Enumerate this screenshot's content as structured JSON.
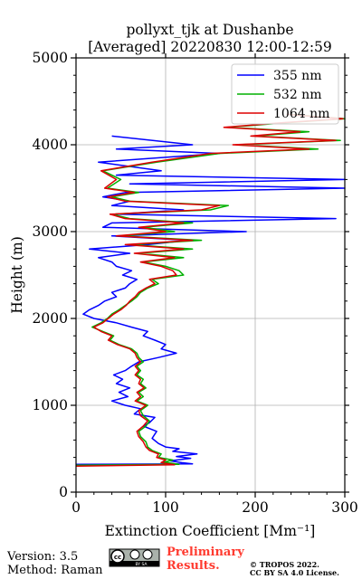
{
  "chart_data": {
    "type": "line",
    "title": "pollyxt_tjk at Dushanbe",
    "subtitle": "[Averaged] 20220830 12:00-12:59",
    "xlabel": "Extinction Coefficient [Mm⁻¹]",
    "ylabel": "Height (m)",
    "xlim": [
      0,
      300
    ],
    "ylim": [
      0,
      5000
    ],
    "x_ticks": [
      0,
      100,
      200,
      300
    ],
    "y_ticks": [
      0,
      1000,
      2000,
      3000,
      4000,
      5000
    ],
    "grid": true,
    "legend_position": "top-right",
    "series": [
      {
        "name": "355 nm",
        "color": "#0000ff",
        "points": [
          [
            0,
            320
          ],
          [
            130,
            325
          ],
          [
            118,
            340
          ],
          [
            105,
            360
          ],
          [
            128,
            390
          ],
          [
            112,
            410
          ],
          [
            135,
            440
          ],
          [
            108,
            470
          ],
          [
            115,
            500
          ],
          [
            100,
            520
          ],
          [
            92,
            560
          ],
          [
            85,
            620
          ],
          [
            90,
            700
          ],
          [
            75,
            760
          ],
          [
            82,
            800
          ],
          [
            88,
            860
          ],
          [
            65,
            900
          ],
          [
            72,
            960
          ],
          [
            55,
            1000
          ],
          [
            40,
            1050
          ],
          [
            58,
            1100
          ],
          [
            48,
            1150
          ],
          [
            60,
            1200
          ],
          [
            45,
            1250
          ],
          [
            52,
            1300
          ],
          [
            42,
            1350
          ],
          [
            55,
            1400
          ],
          [
            62,
            1450
          ],
          [
            70,
            1500
          ],
          [
            92,
            1550
          ],
          [
            112,
            1600
          ],
          [
            95,
            1650
          ],
          [
            100,
            1700
          ],
          [
            88,
            1750
          ],
          [
            75,
            1800
          ],
          [
            80,
            1850
          ],
          [
            62,
            1900
          ],
          [
            45,
            1950
          ],
          [
            20,
            2000
          ],
          [
            8,
            2050
          ],
          [
            15,
            2100
          ],
          [
            25,
            2150
          ],
          [
            32,
            2200
          ],
          [
            45,
            2250
          ],
          [
            40,
            2300
          ],
          [
            55,
            2350
          ],
          [
            60,
            2400
          ],
          [
            68,
            2450
          ],
          [
            52,
            2500
          ],
          [
            62,
            2550
          ],
          [
            45,
            2600
          ],
          [
            40,
            2650
          ],
          [
            25,
            2700
          ],
          [
            60,
            2750
          ],
          [
            15,
            2800
          ],
          [
            80,
            2850
          ],
          [
            125,
            2900
          ],
          [
            40,
            2950
          ],
          [
            190,
            3000
          ],
          [
            30,
            3050
          ],
          [
            40,
            3100
          ],
          [
            290,
            3150
          ],
          [
            45,
            3200
          ],
          [
            120,
            3250
          ],
          [
            40,
            3300
          ],
          [
            60,
            3350
          ],
          [
            30,
            3400
          ],
          [
            55,
            3450
          ],
          [
            310,
            3500
          ],
          [
            60,
            3550
          ],
          [
            300,
            3600
          ],
          [
            45,
            3650
          ],
          [
            95,
            3700
          ],
          [
            25,
            3800
          ],
          [
            160,
            3900
          ],
          [
            45,
            3950
          ],
          [
            130,
            4000
          ],
          [
            40,
            4100
          ]
        ]
      },
      {
        "name": "532 nm",
        "color": "#00b000",
        "points": [
          [
            0,
            310
          ],
          [
            115,
            320
          ],
          [
            98,
            345
          ],
          [
            108,
            370
          ],
          [
            92,
            400
          ],
          [
            95,
            440
          ],
          [
            85,
            480
          ],
          [
            80,
            520
          ],
          [
            78,
            580
          ],
          [
            72,
            640
          ],
          [
            70,
            700
          ],
          [
            78,
            760
          ],
          [
            82,
            820
          ],
          [
            75,
            880
          ],
          [
            72,
            940
          ],
          [
            80,
            1000
          ],
          [
            68,
            1050
          ],
          [
            75,
            1100
          ],
          [
            70,
            1150
          ],
          [
            78,
            1200
          ],
          [
            72,
            1250
          ],
          [
            75,
            1300
          ],
          [
            68,
            1350
          ],
          [
            72,
            1400
          ],
          [
            68,
            1450
          ],
          [
            75,
            1500
          ],
          [
            70,
            1550
          ],
          [
            68,
            1600
          ],
          [
            62,
            1650
          ],
          [
            48,
            1700
          ],
          [
            38,
            1750
          ],
          [
            42,
            1800
          ],
          [
            30,
            1850
          ],
          [
            18,
            1900
          ],
          [
            28,
            1950
          ],
          [
            35,
            2000
          ],
          [
            40,
            2050
          ],
          [
            48,
            2100
          ],
          [
            55,
            2150
          ],
          [
            62,
            2200
          ],
          [
            68,
            2250
          ],
          [
            72,
            2300
          ],
          [
            80,
            2350
          ],
          [
            92,
            2400
          ],
          [
            85,
            2450
          ],
          [
            120,
            2500
          ],
          [
            115,
            2550
          ],
          [
            100,
            2600
          ],
          [
            75,
            2650
          ],
          [
            120,
            2700
          ],
          [
            70,
            2750
          ],
          [
            130,
            2800
          ],
          [
            60,
            2850
          ],
          [
            140,
            2900
          ],
          [
            50,
            2950
          ],
          [
            110,
            3000
          ],
          [
            75,
            3050
          ],
          [
            130,
            3100
          ],
          [
            60,
            3150
          ],
          [
            40,
            3200
          ],
          [
            150,
            3250
          ],
          [
            170,
            3300
          ],
          [
            60,
            3350
          ],
          [
            40,
            3400
          ],
          [
            70,
            3450
          ],
          [
            35,
            3500
          ],
          [
            50,
            3600
          ],
          [
            30,
            3700
          ],
          [
            90,
            3800
          ],
          [
            160,
            3900
          ],
          [
            270,
            3950
          ],
          [
            180,
            4000
          ],
          [
            295,
            4050
          ],
          [
            200,
            4100
          ],
          [
            260,
            4150
          ],
          [
            170,
            4200
          ],
          [
            230,
            4250
          ],
          [
            300,
            4300
          ],
          [
            240,
            4350
          ]
        ]
      },
      {
        "name": "1064 nm",
        "color": "#dd0000",
        "points": [
          [
            0,
            300
          ],
          [
            110,
            315
          ],
          [
            95,
            340
          ],
          [
            100,
            370
          ],
          [
            90,
            400
          ],
          [
            92,
            440
          ],
          [
            82,
            480
          ],
          [
            78,
            520
          ],
          [
            75,
            580
          ],
          [
            70,
            640
          ],
          [
            68,
            700
          ],
          [
            75,
            760
          ],
          [
            80,
            820
          ],
          [
            72,
            880
          ],
          [
            70,
            940
          ],
          [
            78,
            1000
          ],
          [
            66,
            1050
          ],
          [
            72,
            1100
          ],
          [
            68,
            1150
          ],
          [
            76,
            1200
          ],
          [
            70,
            1250
          ],
          [
            72,
            1300
          ],
          [
            66,
            1350
          ],
          [
            70,
            1400
          ],
          [
            66,
            1450
          ],
          [
            72,
            1500
          ],
          [
            68,
            1550
          ],
          [
            66,
            1600
          ],
          [
            60,
            1650
          ],
          [
            46,
            1700
          ],
          [
            36,
            1750
          ],
          [
            40,
            1800
          ],
          [
            28,
            1850
          ],
          [
            20,
            1900
          ],
          [
            30,
            1950
          ],
          [
            36,
            2000
          ],
          [
            42,
            2050
          ],
          [
            50,
            2100
          ],
          [
            56,
            2150
          ],
          [
            60,
            2200
          ],
          [
            66,
            2250
          ],
          [
            70,
            2300
          ],
          [
            78,
            2350
          ],
          [
            88,
            2400
          ],
          [
            82,
            2450
          ],
          [
            112,
            2500
          ],
          [
            108,
            2550
          ],
          [
            95,
            2600
          ],
          [
            72,
            2650
          ],
          [
            110,
            2700
          ],
          [
            65,
            2750
          ],
          [
            120,
            2800
          ],
          [
            55,
            2850
          ],
          [
            130,
            2900
          ],
          [
            45,
            2950
          ],
          [
            100,
            3000
          ],
          [
            70,
            3050
          ],
          [
            120,
            3100
          ],
          [
            55,
            3150
          ],
          [
            38,
            3200
          ],
          [
            140,
            3250
          ],
          [
            160,
            3300
          ],
          [
            55,
            3350
          ],
          [
            35,
            3400
          ],
          [
            65,
            3450
          ],
          [
            32,
            3500
          ],
          [
            45,
            3600
          ],
          [
            28,
            3700
          ],
          [
            85,
            3800
          ],
          [
            150,
            3900
          ],
          [
            260,
            3950
          ],
          [
            175,
            4000
          ],
          [
            290,
            4050
          ],
          [
            195,
            4100
          ],
          [
            250,
            4150
          ],
          [
            165,
            4200
          ],
          [
            225,
            4250
          ],
          [
            298,
            4300
          ],
          [
            235,
            4350
          ]
        ]
      }
    ]
  },
  "footer": {
    "version": "Version: 3.5",
    "method": "Method: Raman",
    "preliminary_line1": "Preliminary",
    "preliminary_line2": "Results.",
    "copyright_line1": "© TROPOS 2022.",
    "copyright_line2": "CC BY SA 4.0 License.",
    "cc_badge_text": "BY   SA"
  }
}
